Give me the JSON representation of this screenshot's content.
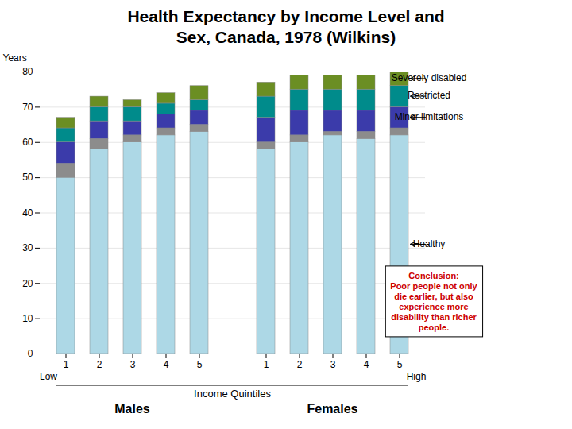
{
  "chart_data": {
    "type": "bar",
    "stacked": true,
    "title": "Health Expectancy by Income Level and\nSex, Canada, 1978 (Wilkins)",
    "ylabel": "Years",
    "xlabel": "Income Quintiles",
    "x_end_labels": [
      "Low",
      "High"
    ],
    "group_labels": [
      "Males",
      "Females"
    ],
    "categories": [
      "1",
      "2",
      "3",
      "4",
      "5",
      "1",
      "2",
      "3",
      "4",
      "5"
    ],
    "series": [
      {
        "name": "Healthy",
        "color": "#add8e6",
        "values": [
          50,
          58,
          60,
          62,
          63,
          58,
          60,
          62,
          61,
          62
        ]
      },
      {
        "color": "#8c8c8c",
        "values": [
          4,
          3,
          2,
          2,
          2,
          2,
          2,
          1,
          2,
          2
        ]
      },
      {
        "name": "Minor limitations",
        "color": "#3b3baa",
        "values": [
          6,
          5,
          4,
          4,
          4,
          7,
          7,
          6,
          6,
          6
        ]
      },
      {
        "name": "Restricted",
        "color": "#008b8b",
        "values": [
          4,
          4,
          4,
          3,
          3,
          6,
          6,
          6,
          6,
          6
        ]
      },
      {
        "name": "Severely disabled",
        "color": "#6b8e23",
        "values": [
          3,
          3,
          2,
          3,
          4,
          4,
          4,
          4,
          4,
          4
        ]
      }
    ],
    "ylim": [
      0,
      80
    ],
    "yticks": [
      0,
      10,
      20,
      30,
      40,
      50,
      60,
      70,
      80
    ],
    "grid": true,
    "annotations": [
      {
        "text": "Conclusion:\nPoor people not only\ndie earlier, but also\nexperience more\ndisability than richer\npeople.",
        "color": "#cc0000"
      }
    ]
  }
}
